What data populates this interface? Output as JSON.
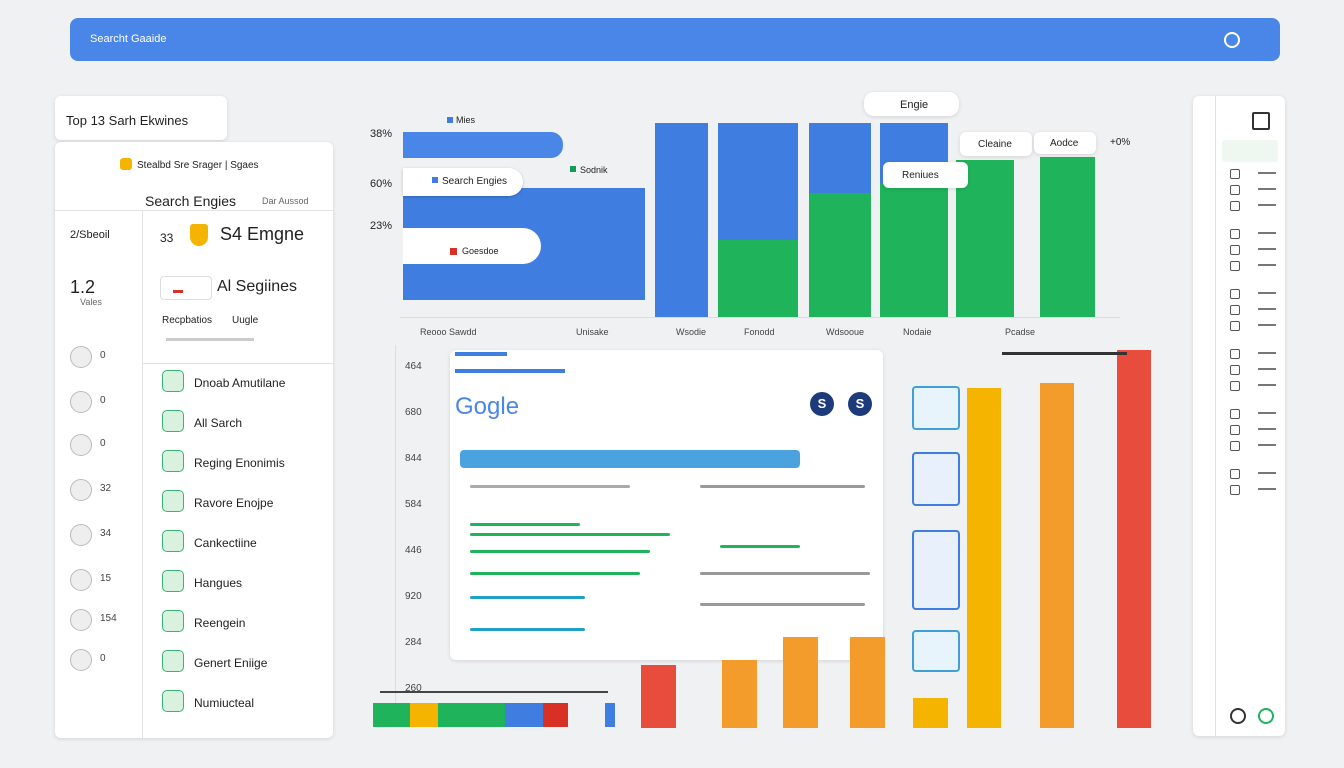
{
  "header": {
    "search": "Searcht Gaaide"
  },
  "left": {
    "title": "Top 13 Sarh Ekwines",
    "subtitle": "Stealbd Sre Srager | Sgaes",
    "heading": "Search Engies",
    "heading_note": "Dar Aussod",
    "stat1_label": "2/Sbeoil",
    "stat1_value": "33",
    "stat1_name": "S4 Emgne",
    "stat2_value": "1.2",
    "stat2_label": "Vales",
    "stat2_name": "Al Segiines",
    "row_label": "Recpbatios",
    "row_note": "Uugle",
    "side_values": [
      "0",
      "0",
      "0",
      "32",
      "34",
      "15",
      "154",
      "0"
    ],
    "items": [
      "Dnoab Amutilane",
      "All Sarch",
      "Reging Enonimis",
      "Ravore Enojpe",
      "Cankectiine",
      "Hangues",
      "Reengein",
      "Genert Eniige",
      "Numiucteal"
    ]
  },
  "top_chart": {
    "yticks": [
      "38%",
      "60%",
      "23%"
    ],
    "legend": [
      "Mies",
      "Search Engies",
      "Sodnik",
      "Goesdoe"
    ],
    "tags": [
      "Engie",
      "Cleaine",
      "Aodce",
      "Reniues"
    ],
    "right_label": "+0%",
    "xlabels": [
      "Reooo Sawdd",
      "Unisake",
      "Wsodie",
      "Fonodd",
      "Wdsooue",
      "Nodaie",
      "Pcadse"
    ]
  },
  "bottom_chart": {
    "yticks": [
      "464",
      "680",
      "844",
      "584",
      "446",
      "920",
      "284",
      "260"
    ],
    "logo": "Gogle",
    "badges": [
      "S",
      "S"
    ]
  }
}
